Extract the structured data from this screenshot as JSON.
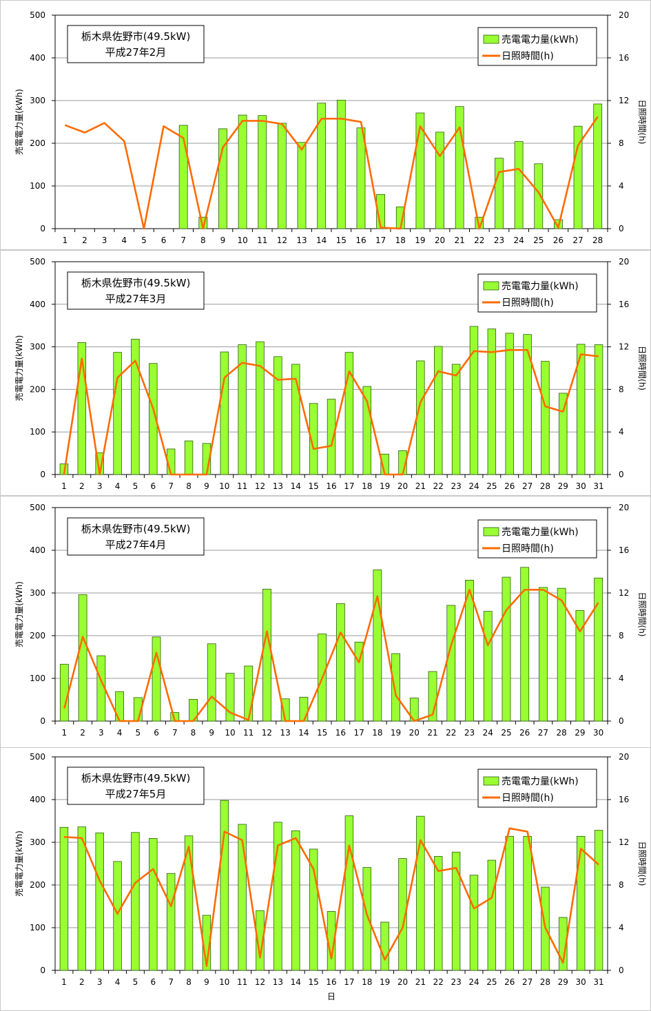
{
  "colors": {
    "bar": "#99ff33",
    "bar_stroke": "#2d5a0c",
    "line": "#ff6a00",
    "grid": "#999999",
    "frame": "#000000",
    "panel_border": "#c8c8c8"
  },
  "chart_data": [
    {
      "type": "bar+line",
      "title_line1": "栃木県佐野市(49.5kW)",
      "title_line2": "平成27年2月",
      "ylabel_left": "売電電力量(kWh)",
      "ylabel_right": "日照時間(h)",
      "xlabel": "",
      "ylim_left": [
        0,
        500
      ],
      "yticks_left": [
        0,
        100,
        200,
        300,
        400,
        500
      ],
      "ylim_right": [
        0,
        20
      ],
      "yticks_right": [
        0,
        4,
        8,
        12,
        16,
        20
      ],
      "legend": [
        "売電電力量(kWh)",
        "日照時間(h)"
      ],
      "categories": [
        "1",
        "2",
        "3",
        "4",
        "5",
        "6",
        "7",
        "8",
        "9",
        "10",
        "11",
        "12",
        "13",
        "14",
        "15",
        "16",
        "17",
        "18",
        "19",
        "20",
        "21",
        "22",
        "23",
        "24",
        "25",
        "26",
        "27",
        "28"
      ],
      "series": [
        {
          "name": "売電電力量(kWh)",
          "kind": "bar",
          "values": [
            null,
            null,
            null,
            null,
            null,
            null,
            242,
            27,
            234,
            266,
            265,
            247,
            202,
            294,
            301,
            236,
            80,
            51,
            271,
            226,
            286,
            27,
            165,
            204,
            152,
            21,
            240,
            292
          ]
        },
        {
          "name": "日照時間(h)",
          "kind": "line",
          "values": [
            9.7,
            9.0,
            9.9,
            8.2,
            0.0,
            9.6,
            8.5,
            0.0,
            7.6,
            10.1,
            10.1,
            9.8,
            7.4,
            10.3,
            10.3,
            10.0,
            0.1,
            0.0,
            9.6,
            6.8,
            9.5,
            0.0,
            5.3,
            5.6,
            3.4,
            0.1,
            7.8,
            10.5
          ]
        }
      ]
    },
    {
      "type": "bar+line",
      "title_line1": "栃木県佐野市(49.5kW)",
      "title_line2": "平成27年3月",
      "ylabel_left": "売電電力量(kWh)",
      "ylabel_right": "日照時間(h)",
      "xlabel": "",
      "ylim_left": [
        0,
        500
      ],
      "yticks_left": [
        0,
        100,
        200,
        300,
        400,
        500
      ],
      "ylim_right": [
        0,
        20
      ],
      "yticks_right": [
        0,
        4,
        8,
        12,
        16,
        20
      ],
      "legend": [
        "売電電力量(kWh)",
        "日照時間(h)"
      ],
      "categories": [
        "1",
        "2",
        "3",
        "4",
        "5",
        "6",
        "7",
        "8",
        "9",
        "10",
        "11",
        "12",
        "13",
        "14",
        "15",
        "16",
        "17",
        "18",
        "19",
        "20",
        "21",
        "22",
        "23",
        "24",
        "25",
        "26",
        "27",
        "28",
        "29",
        "30",
        "31"
      ],
      "series": [
        {
          "name": "売電電力量(kWh)",
          "kind": "bar",
          "values": [
            25,
            310,
            51,
            287,
            318,
            261,
            60,
            79,
            73,
            288,
            305,
            312,
            277,
            259,
            167,
            177,
            287,
            207,
            48,
            56,
            267,
            301,
            259,
            348,
            342,
            332,
            329,
            266,
            191,
            306,
            305
          ]
        },
        {
          "name": "日照時間(h)",
          "kind": "line",
          "values": [
            0.0,
            10.9,
            0.0,
            9.1,
            10.7,
            6.2,
            0.0,
            0.0,
            0.0,
            9.1,
            10.5,
            10.2,
            8.9,
            9.0,
            2.4,
            2.7,
            9.7,
            6.9,
            0.0,
            0.0,
            6.8,
            9.7,
            9.3,
            11.6,
            11.5,
            11.7,
            11.7,
            6.4,
            5.9,
            11.3,
            11.1
          ]
        }
      ]
    },
    {
      "type": "bar+line",
      "title_line1": "栃木県佐野市(49.5kW)",
      "title_line2": "平成27年4月",
      "ylabel_left": "売電電力量(kWh)",
      "ylabel_right": "日照時間(h)",
      "xlabel": "",
      "ylim_left": [
        0,
        500
      ],
      "yticks_left": [
        0,
        100,
        200,
        300,
        400,
        500
      ],
      "ylim_right": [
        0,
        20
      ],
      "yticks_right": [
        0,
        4,
        8,
        12,
        16,
        20
      ],
      "legend": [
        "売電電力量(kWh)",
        "日照時間(h)"
      ],
      "categories": [
        "1",
        "2",
        "3",
        "4",
        "5",
        "6",
        "7",
        "8",
        "9",
        "10",
        "11",
        "12",
        "13",
        "14",
        "15",
        "16",
        "17",
        "18",
        "19",
        "20",
        "21",
        "22",
        "23",
        "24",
        "25",
        "26",
        "27",
        "28",
        "29",
        "30"
      ],
      "series": [
        {
          "name": "売電電力量(kWh)",
          "kind": "bar",
          "values": [
            133,
            296,
            153,
            69,
            55,
            197,
            20,
            51,
            181,
            112,
            129,
            309,
            52,
            56,
            204,
            275,
            185,
            354,
            158,
            54,
            116,
            271,
            330,
            257,
            337,
            360,
            313,
            311,
            259,
            335
          ]
        },
        {
          "name": "日照時間(h)",
          "kind": "line",
          "values": [
            1.2,
            7.9,
            3.8,
            0.0,
            0.0,
            6.4,
            0.0,
            0.0,
            2.3,
            0.8,
            0.1,
            8.4,
            0.0,
            0.0,
            4.0,
            8.3,
            5.5,
            11.7,
            2.4,
            0.0,
            0.6,
            7.1,
            12.3,
            7.1,
            10.4,
            12.3,
            12.3,
            11.3,
            8.4,
            11.1
          ]
        }
      ]
    },
    {
      "type": "bar+line",
      "title_line1": "栃木県佐野市(49.5kW)",
      "title_line2": "平成27年5月",
      "ylabel_left": "売電電力量(kWh)",
      "ylabel_right": "日照時間(h)",
      "xlabel": "日",
      "ylim_left": [
        0,
        500
      ],
      "yticks_left": [
        0,
        100,
        200,
        300,
        400,
        500
      ],
      "ylim_right": [
        0,
        20
      ],
      "yticks_right": [
        0,
        4,
        8,
        12,
        16,
        20
      ],
      "legend": [
        "売電電力量(kWh)",
        "日照時間(h)"
      ],
      "categories": [
        "1",
        "2",
        "3",
        "4",
        "5",
        "6",
        "7",
        "8",
        "9",
        "10",
        "11",
        "12",
        "13",
        "14",
        "15",
        "16",
        "17",
        "18",
        "19",
        "20",
        "21",
        "22",
        "23",
        "24",
        "25",
        "26",
        "27",
        "28",
        "29",
        "30",
        "31"
      ],
      "series": [
        {
          "name": "売電電力量(kWh)",
          "kind": "bar",
          "values": [
            335,
            336,
            322,
            255,
            323,
            309,
            227,
            315,
            129,
            398,
            342,
            140,
            347,
            327,
            284,
            138,
            362,
            241,
            113,
            262,
            361,
            267,
            277,
            223,
            258,
            314,
            314,
            195,
            124,
            314,
            328
          ]
        },
        {
          "name": "日照時間(h)",
          "kind": "line",
          "values": [
            12.5,
            12.4,
            8.4,
            5.3,
            8.2,
            9.5,
            6.0,
            11.6,
            0.4,
            13.0,
            12.2,
            1.2,
            11.7,
            12.4,
            9.5,
            1.1,
            11.7,
            5.2,
            1.0,
            4.0,
            12.2,
            9.3,
            9.6,
            5.8,
            6.8,
            13.3,
            13.0,
            4.0,
            0.7,
            11.4,
            9.9
          ]
        }
      ]
    }
  ]
}
